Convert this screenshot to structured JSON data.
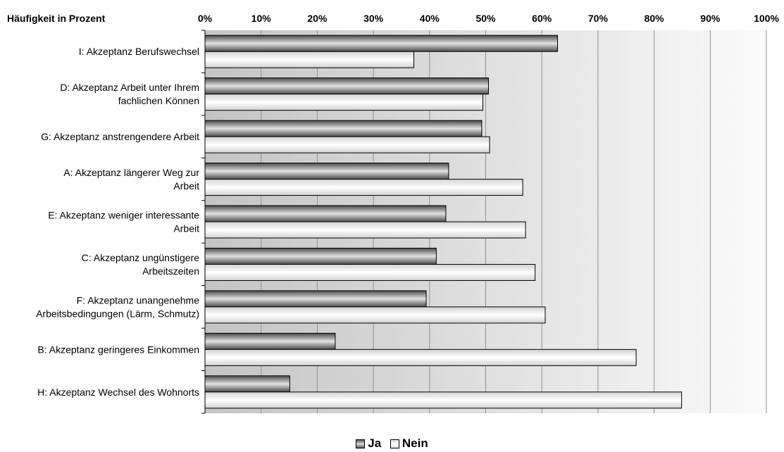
{
  "chart_data": {
    "type": "bar",
    "orientation": "horizontal",
    "stacked": false,
    "title": "",
    "corner_label": "Häufigkeit in Prozent",
    "xlim": [
      0,
      100
    ],
    "x_ticks": [
      "0%",
      "10%",
      "20%",
      "30%",
      "40%",
      "50%",
      "60%",
      "70%",
      "80%",
      "90%",
      "100%"
    ],
    "categories": [
      [
        "I: Akzeptanz Berufswechsel"
      ],
      [
        "D: Akzeptanz Arbeit unter Ihrem",
        "fachlichen Können"
      ],
      [
        "G: Akzeptanz anstrengendere Arbeit"
      ],
      [
        "A: Akzeptanz längerer Weg zur",
        "Arbeit"
      ],
      [
        "E: Akzeptanz weniger interessante",
        "Arbeit"
      ],
      [
        "C: Akzeptanz ungünstigere",
        "Arbeitszeiten"
      ],
      [
        "F: Akzeptanz unangenehme",
        "Arbeitsbedingungen (Lärm, Schmutz)"
      ],
      [
        "B: Akzeptanz geringeres Einkommen"
      ],
      [
        "H: Akzeptanz Wechsel des Wohnorts"
      ]
    ],
    "series": [
      {
        "name": "Ja",
        "values": [
          62.8,
          50.5,
          49.3,
          43.4,
          42.9,
          41.2,
          39.4,
          23.2,
          15.1
        ],
        "color": "#8c8c8c"
      },
      {
        "name": "Nein",
        "values": [
          37.2,
          49.5,
          50.7,
          56.6,
          57.1,
          58.8,
          60.6,
          76.8,
          84.9
        ],
        "color": "#f4f4f4"
      }
    ],
    "grid": true,
    "legend_position": "bottom"
  }
}
